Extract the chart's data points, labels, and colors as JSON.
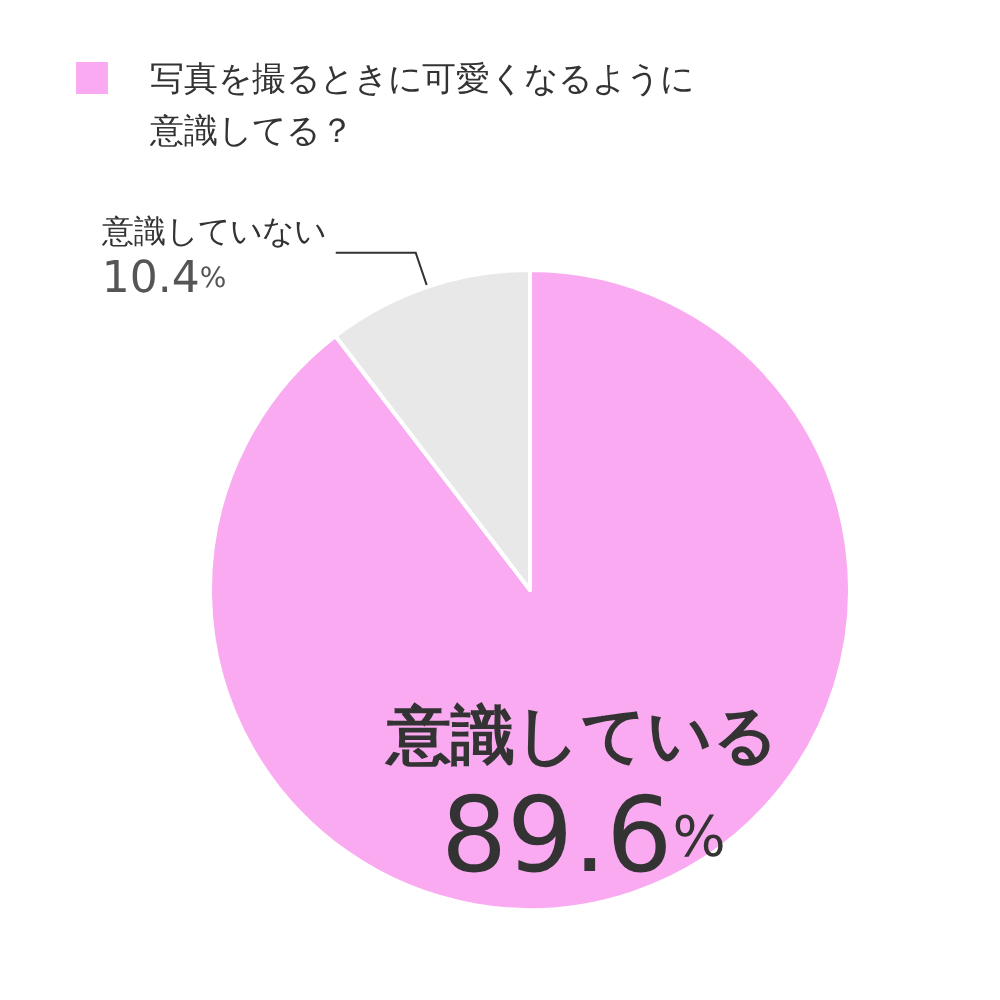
{
  "chart_data": {
    "type": "pie",
    "title": "写真を撮るときに可愛くなるように意識してる？",
    "categories": [
      "意識している",
      "意識していない"
    ],
    "values": [
      89.6,
      10.4
    ],
    "colors": [
      "#faaaf0",
      "#e8e8e8"
    ],
    "value_labels": [
      "89.6%",
      "10.4%"
    ],
    "legend": false
  }
}
